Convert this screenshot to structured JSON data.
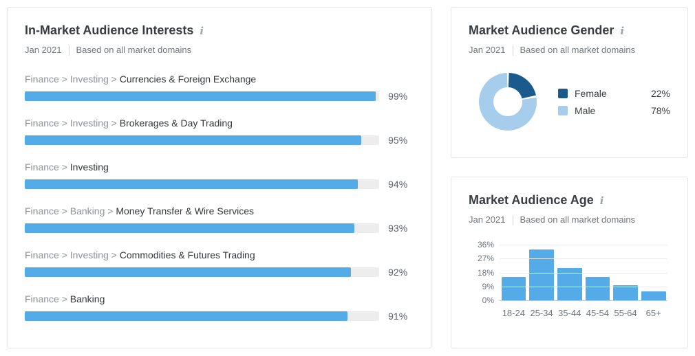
{
  "ui": {
    "info_icon_glyph": "i"
  },
  "colors": {
    "interest_bar_fill": "#55abe8",
    "interest_bar_track": "#ededed",
    "age_bar_fill": "#55abe8",
    "grid_line": "#eaebec",
    "axis_line": "#c8cbce"
  },
  "chart_data": [
    {
      "id": "interests",
      "type": "bar",
      "orientation": "horizontal",
      "title": "In-Market Audience Interests",
      "period": "Jan 2021",
      "scope": "Based on all market domains",
      "xlim": [
        0,
        100
      ],
      "bar_color": "#55abe8",
      "items": [
        {
          "path": "Finance > Investing >",
          "name": "Currencies & Foreign Exchange",
          "value": 99,
          "display": "99%"
        },
        {
          "path": "Finance > Investing >",
          "name": "Brokerages & Day Trading",
          "value": 95,
          "display": "95%"
        },
        {
          "path": "Finance >",
          "name": "Investing",
          "value": 94,
          "display": "94%"
        },
        {
          "path": "Finance > Banking >",
          "name": "Money Transfer & Wire Services",
          "value": 93,
          "display": "93%"
        },
        {
          "path": "Finance > Investing >",
          "name": "Commodities & Futures Trading",
          "value": 92,
          "display": "92%"
        },
        {
          "path": "Finance >",
          "name": "Banking",
          "value": 91,
          "display": "91%"
        }
      ]
    },
    {
      "id": "gender",
      "type": "pie",
      "donut": true,
      "title": "Market Audience Gender",
      "period": "Jan 2021",
      "scope": "Based on all market domains",
      "legend_position": "right",
      "slices": [
        {
          "label": "Female",
          "value": 22,
          "display": "22%",
          "color": "#1a5a8c"
        },
        {
          "label": "Male",
          "value": 78,
          "display": "78%",
          "color": "#a6cdec"
        }
      ]
    },
    {
      "id": "age",
      "type": "bar",
      "title": "Market Audience Age",
      "period": "Jan 2021",
      "scope": "Based on all market domains",
      "categories": [
        "18-24",
        "25-34",
        "35-44",
        "45-54",
        "55-64",
        "65+"
      ],
      "values": [
        15,
        33,
        21,
        15,
        10,
        6
      ],
      "ylim": [
        0,
        36
      ],
      "yticks": [
        "36%",
        "27%",
        "18%",
        "9%",
        "0%"
      ],
      "grid": true,
      "bar_color": "#55abe8"
    }
  ]
}
